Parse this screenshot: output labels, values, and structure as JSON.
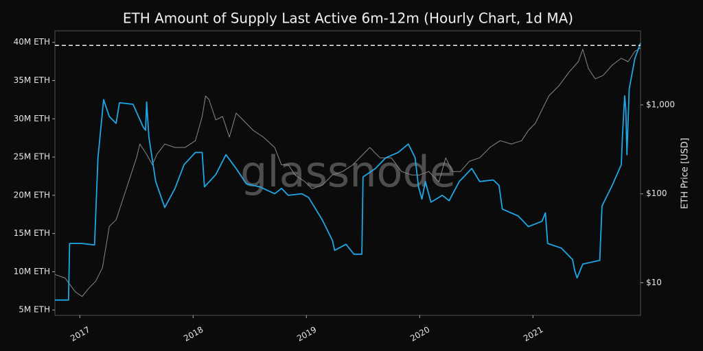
{
  "chart_data": {
    "type": "line",
    "title": "ETH Amount of Supply Last Active 6m-12m (Hourly Chart, 1d MA)",
    "watermark": "glassnode",
    "y2label": "ETH Price [USD]",
    "xlim": [
      2016.78,
      2021.95
    ],
    "xticks": [
      2017,
      2018,
      2019,
      2020,
      2021
    ],
    "ylim": [
      4.3,
      41.5
    ],
    "yticks": [
      {
        "value": 5,
        "label": "5M ETH"
      },
      {
        "value": 10,
        "label": "10M ETH"
      },
      {
        "value": 15,
        "label": "15M ETH"
      },
      {
        "value": 20,
        "label": "20M ETH"
      },
      {
        "value": 25,
        "label": "25M ETH"
      },
      {
        "value": 30,
        "label": "30M ETH"
      },
      {
        "value": 35,
        "label": "35M ETH"
      },
      {
        "value": 40,
        "label": "40M ETH"
      }
    ],
    "y2lim": [
      4.3,
      6800
    ],
    "y2log": true,
    "y2ticks": [
      {
        "value": 10,
        "label": "$10"
      },
      {
        "value": 100,
        "label": "$100"
      },
      {
        "value": 1000,
        "label": "$1,000"
      }
    ],
    "reference_line": 39.6,
    "series": [
      {
        "color": "#8a8a8a",
        "axis": "y2",
        "x": [
          2016.78,
          2016.87,
          2016.96,
          2017.02,
          2017.08,
          2017.14,
          2017.2,
          2017.26,
          2017.32,
          2017.38,
          2017.44,
          2017.5,
          2017.53,
          2017.59,
          2017.64,
          2017.68,
          2017.75,
          2017.84,
          2017.93,
          2018.02,
          2018.08,
          2018.11,
          2018.14,
          2018.2,
          2018.26,
          2018.32,
          2018.38,
          2018.44,
          2018.53,
          2018.62,
          2018.72,
          2018.78,
          2018.84,
          2018.9,
          2018.99,
          2019.05,
          2019.14,
          2019.23,
          2019.32,
          2019.41,
          2019.5,
          2019.56,
          2019.65,
          2019.75,
          2019.84,
          2019.93,
          2020.0,
          2020.08,
          2020.17,
          2020.23,
          2020.29,
          2020.36,
          2020.44,
          2020.53,
          2020.62,
          2020.71,
          2020.81,
          2020.9,
          2020.96,
          2021.02,
          2021.08,
          2021.14,
          2021.23,
          2021.32,
          2021.4,
          2021.44,
          2021.49,
          2021.55,
          2021.62,
          2021.7,
          2021.78,
          2021.84,
          2021.9,
          2021.95
        ],
        "values": [
          12.4,
          11.3,
          7.9,
          7.0,
          8.7,
          10.4,
          14.8,
          43,
          51,
          87,
          149,
          254,
          363,
          278,
          212,
          278,
          363,
          332,
          332,
          396,
          740,
          1260,
          1150,
          678,
          740,
          434,
          808,
          678,
          518,
          434,
          332,
          212,
          212,
          163,
          136,
          114,
          125,
          163,
          178,
          212,
          278,
          332,
          254,
          254,
          178,
          163,
          163,
          178,
          136,
          254,
          178,
          178,
          233,
          254,
          332,
          396,
          363,
          396,
          518,
          618,
          883,
          1260,
          1640,
          2350,
          3060,
          4220,
          2560,
          1960,
          2150,
          2800,
          3350,
          3060,
          4000,
          4370
        ]
      },
      {
        "color": "#1fa8e8",
        "x": [
          2016.78,
          2016.9,
          2016.91,
          2017.02,
          2017.13,
          2017.16,
          2017.21,
          2017.26,
          2017.32,
          2017.35,
          2017.47,
          2017.56,
          2017.58,
          2017.59,
          2017.61,
          2017.67,
          2017.75,
          2017.84,
          2017.92,
          2018.02,
          2018.08,
          2018.1,
          2018.2,
          2018.29,
          2018.38,
          2018.47,
          2018.59,
          2018.72,
          2018.78,
          2018.84,
          2018.96,
          2019.02,
          2019.14,
          2019.23,
          2019.25,
          2019.35,
          2019.42,
          2019.49,
          2019.5,
          2019.61,
          2019.7,
          2019.81,
          2019.9,
          2019.96,
          2019.99,
          2020.02,
          2020.05,
          2020.1,
          2020.2,
          2020.26,
          2020.35,
          2020.46,
          2020.53,
          2020.65,
          2020.7,
          2020.73,
          2020.87,
          2020.96,
          2021.08,
          2021.11,
          2021.13,
          2021.25,
          2021.35,
          2021.37,
          2021.39,
          2021.44,
          2021.59,
          2021.61,
          2021.7,
          2021.78,
          2021.79,
          2021.81,
          2021.82,
          2021.83,
          2021.85,
          2021.9,
          2021.95
        ],
        "values": [
          6.3,
          6.3,
          13.7,
          13.7,
          13.5,
          24.9,
          32.5,
          30.3,
          29.4,
          32.1,
          31.9,
          28.9,
          28.5,
          32.2,
          27.6,
          21.8,
          18.4,
          20.9,
          24.0,
          25.6,
          25.6,
          21.1,
          22.7,
          25.3,
          23.5,
          21.5,
          21.1,
          20.2,
          20.9,
          20.0,
          20.2,
          19.7,
          16.8,
          14.1,
          12.8,
          13.6,
          12.3,
          12.3,
          22.4,
          23.5,
          24.9,
          25.6,
          26.7,
          24.9,
          21.1,
          19.5,
          21.8,
          19.1,
          20.0,
          19.3,
          21.8,
          23.5,
          21.8,
          22.0,
          21.3,
          18.2,
          17.3,
          15.9,
          16.6,
          17.7,
          13.7,
          13.1,
          11.6,
          10.1,
          9.2,
          11.0,
          11.5,
          18.6,
          21.3,
          24.0,
          27.6,
          33.0,
          31.2,
          25.3,
          33.9,
          37.9,
          39.9
        ]
      }
    ]
  }
}
